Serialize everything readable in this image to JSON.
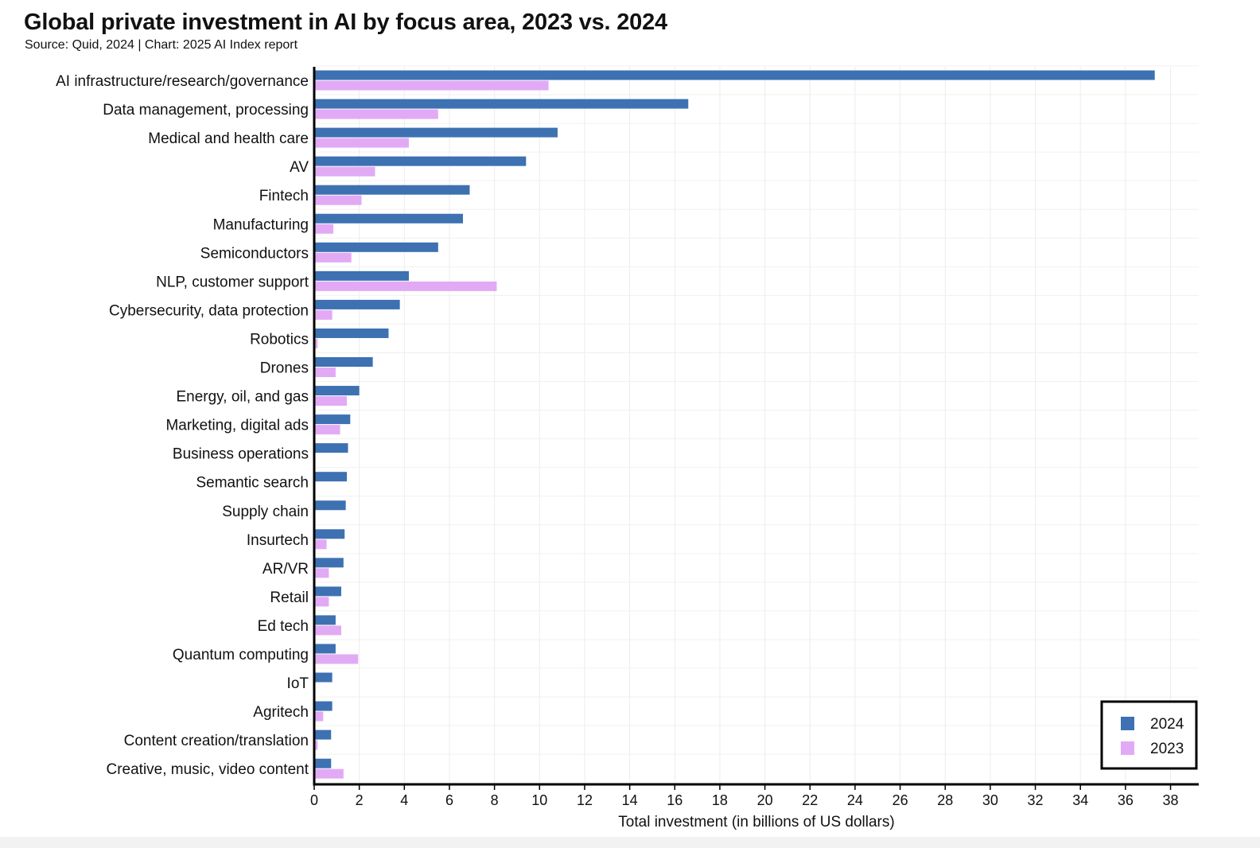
{
  "chart_data": {
    "type": "bar",
    "orientation": "horizontal",
    "title": "Global private investment in AI by focus area, 2023 vs. 2024",
    "subtitle": "Source: Quid, 2024 | Chart: 2025 AI Index report",
    "xlabel": "Total investment (in billions of US dollars)",
    "ylabel": "",
    "xlim": [
      0,
      39.2
    ],
    "xticks": [
      0,
      2,
      4,
      6,
      8,
      10,
      12,
      14,
      16,
      18,
      20,
      22,
      24,
      26,
      28,
      30,
      32,
      34,
      36,
      38
    ],
    "grid": true,
    "legend_position": "bottom-right",
    "categories": [
      "AI infrastructure/research/governance",
      "Data management, processing",
      "Medical and health care",
      "AV",
      "Fintech",
      "Manufacturing",
      "Semiconductors",
      "NLP, customer support",
      "Cybersecurity, data protection",
      "Robotics",
      "Drones",
      "Energy, oil, and gas",
      "Marketing, digital ads",
      "Business operations",
      "Semantic search",
      "Supply chain",
      "Insurtech",
      "AR/VR",
      "Retail",
      "Ed tech",
      "Quantum computing",
      "IoT",
      "Agritech",
      "Content creation/translation",
      "Creative, music, video content"
    ],
    "series": [
      {
        "name": "2024",
        "color": "#3d71b2",
        "values": [
          37.3,
          16.6,
          10.8,
          9.4,
          6.9,
          6.6,
          5.5,
          4.2,
          3.8,
          3.3,
          2.6,
          2.0,
          1.6,
          1.5,
          1.45,
          1.4,
          1.35,
          1.3,
          1.2,
          0.95,
          0.95,
          0.8,
          0.8,
          0.75,
          0.75
        ]
      },
      {
        "name": "2023",
        "color": "#e2aaf5",
        "values": [
          10.4,
          5.5,
          4.2,
          2.7,
          2.1,
          0.85,
          1.65,
          8.1,
          0.8,
          0.15,
          0.95,
          1.45,
          1.15,
          0.0,
          0.0,
          0.0,
          0.55,
          0.65,
          0.65,
          1.2,
          1.95,
          0.0,
          0.4,
          0.15,
          1.3
        ]
      }
    ]
  }
}
